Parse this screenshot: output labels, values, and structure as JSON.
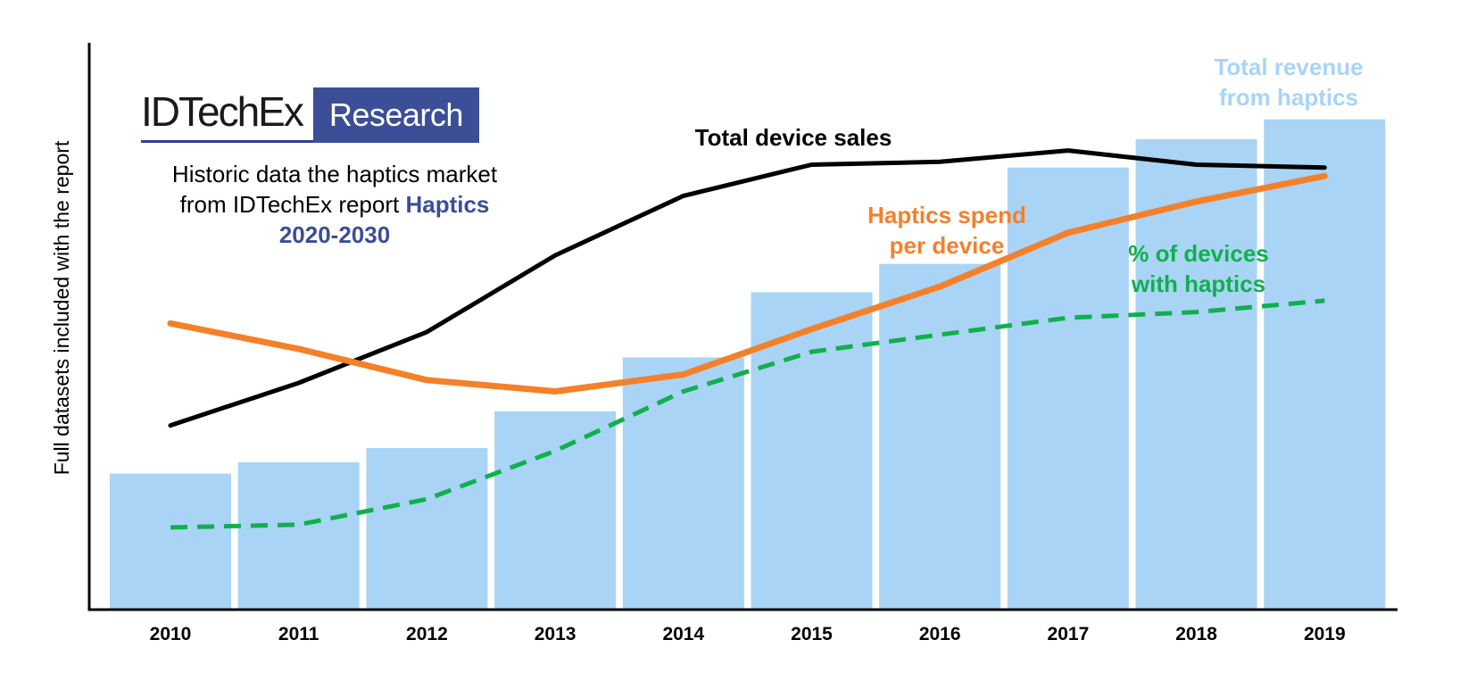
{
  "logo": {
    "word": "IDTechEx",
    "box": "Research"
  },
  "description": {
    "line1": "Historic data the haptics market",
    "line2_prefix": "from IDTechEx report ",
    "line2_highlight": "Haptics",
    "line3_highlight": "2020-2030"
  },
  "colors": {
    "bars": "#a9d4f5",
    "device_sales": "#000000",
    "spend": "#f5802a",
    "percent": "#10b04c",
    "revenue_label": "#a9d4f5",
    "axis": "#000000"
  },
  "chart_data": {
    "type": "bar",
    "title": "",
    "xlabel": "",
    "ylabel": "Full datasets included with the report",
    "ylim": [
      0,
      100
    ],
    "grid": false,
    "categories": [
      "2010",
      "2011",
      "2012",
      "2013",
      "2014",
      "2015",
      "2016",
      "2017",
      "2018",
      "2019"
    ],
    "series": [
      {
        "name": "Total revenue from haptics",
        "label_lines": [
          "Total revenue",
          "from haptics"
        ],
        "kind": "bar",
        "values": [
          24,
          26,
          28.5,
          35,
          44.5,
          56,
          61,
          78,
          83,
          86.5
        ]
      },
      {
        "name": "Total device sales",
        "label_lines": [
          "Total device sales"
        ],
        "kind": "line",
        "values": [
          32.5,
          40,
          49,
          62.5,
          73,
          78.5,
          79,
          81,
          78.5,
          78
        ]
      },
      {
        "name": "Haptics spend per device",
        "label_lines": [
          "Haptics spend",
          "per device"
        ],
        "kind": "line",
        "values": [
          50.5,
          46,
          40.5,
          38.5,
          41.5,
          49.5,
          57,
          66.5,
          72,
          76.5
        ]
      },
      {
        "name": "% of devices with haptics",
        "label_lines": [
          "% of devices",
          "with haptics"
        ],
        "kind": "dashed-line",
        "values": [
          14.5,
          15,
          19.5,
          28,
          38.5,
          45.5,
          48.5,
          51.5,
          52.5,
          54.5
        ]
      }
    ]
  }
}
